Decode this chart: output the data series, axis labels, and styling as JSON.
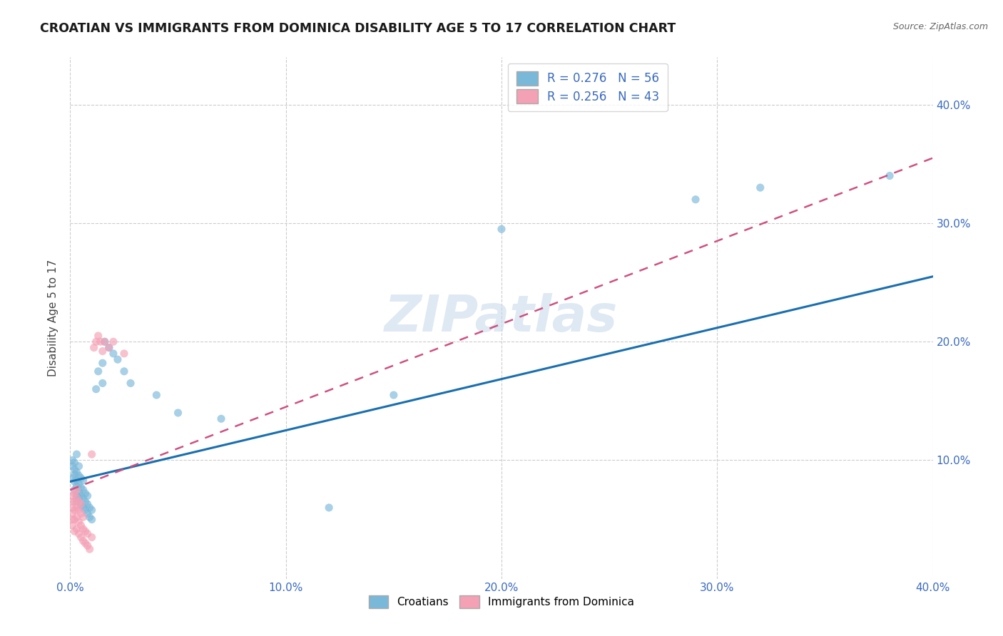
{
  "title": "CROATIAN VS IMMIGRANTS FROM DOMINICA DISABILITY AGE 5 TO 17 CORRELATION CHART",
  "source": "Source: ZipAtlas.com",
  "ylabel": "Disability Age 5 to 17",
  "xlim": [
    0.0,
    0.4
  ],
  "ylim": [
    0.0,
    0.44
  ],
  "x_ticks": [
    0.0,
    0.1,
    0.2,
    0.3,
    0.4
  ],
  "x_tick_labels": [
    "0.0%",
    "10.0%",
    "20.0%",
    "30.0%",
    "40.0%"
  ],
  "y_ticks": [
    0.1,
    0.2,
    0.3,
    0.4
  ],
  "y_tick_labels": [
    "10.0%",
    "20.0%",
    "30.0%",
    "40.0%"
  ],
  "croatian_color": "#7ab8d9",
  "dominica_color": "#f4a0b5",
  "croatian_line_color": "#1a6faf",
  "dominica_line_color": "#d05080",
  "croatian_R": 0.276,
  "croatian_N": 56,
  "dominica_R": 0.256,
  "dominica_N": 43,
  "legend_label_croatian": "Croatians",
  "legend_label_dominica": "Immigrants from Dominica",
  "watermark": "ZIPatlas",
  "cro_line_x0": 0.0,
  "cro_line_y0": 0.082,
  "cro_line_x1": 0.4,
  "cro_line_y1": 0.255,
  "dom_line_x0": 0.0,
  "dom_line_y0": 0.075,
  "dom_line_x1": 0.4,
  "dom_line_y1": 0.355,
  "cro_x": [
    0.001,
    0.001,
    0.001,
    0.002,
    0.002,
    0.002,
    0.002,
    0.002,
    0.003,
    0.003,
    0.003,
    0.003,
    0.003,
    0.003,
    0.004,
    0.004,
    0.004,
    0.004,
    0.004,
    0.005,
    0.005,
    0.005,
    0.005,
    0.006,
    0.006,
    0.006,
    0.006,
    0.007,
    0.007,
    0.007,
    0.008,
    0.008,
    0.008,
    0.009,
    0.009,
    0.01,
    0.01,
    0.012,
    0.013,
    0.015,
    0.015,
    0.016,
    0.018,
    0.02,
    0.022,
    0.025,
    0.028,
    0.04,
    0.05,
    0.07,
    0.12,
    0.15,
    0.2,
    0.29,
    0.32,
    0.38
  ],
  "cro_y": [
    0.085,
    0.095,
    0.1,
    0.075,
    0.082,
    0.088,
    0.092,
    0.098,
    0.065,
    0.07,
    0.078,
    0.083,
    0.09,
    0.105,
    0.068,
    0.073,
    0.08,
    0.087,
    0.095,
    0.062,
    0.07,
    0.077,
    0.085,
    0.06,
    0.068,
    0.075,
    0.083,
    0.058,
    0.065,
    0.072,
    0.055,
    0.063,
    0.07,
    0.052,
    0.06,
    0.05,
    0.058,
    0.16,
    0.175,
    0.165,
    0.182,
    0.2,
    0.195,
    0.19,
    0.185,
    0.175,
    0.165,
    0.155,
    0.14,
    0.135,
    0.06,
    0.155,
    0.295,
    0.32,
    0.33,
    0.34
  ],
  "dom_x": [
    0.001,
    0.001,
    0.001,
    0.001,
    0.001,
    0.001,
    0.002,
    0.002,
    0.002,
    0.002,
    0.002,
    0.003,
    0.003,
    0.003,
    0.003,
    0.003,
    0.004,
    0.004,
    0.004,
    0.004,
    0.005,
    0.005,
    0.005,
    0.005,
    0.006,
    0.006,
    0.006,
    0.007,
    0.007,
    0.008,
    0.008,
    0.009,
    0.01,
    0.01,
    0.011,
    0.012,
    0.013,
    0.014,
    0.015,
    0.016,
    0.018,
    0.02,
    0.025
  ],
  "dom_y": [
    0.045,
    0.05,
    0.055,
    0.06,
    0.065,
    0.07,
    0.04,
    0.05,
    0.058,
    0.065,
    0.072,
    0.042,
    0.052,
    0.06,
    0.068,
    0.075,
    0.038,
    0.048,
    0.058,
    0.065,
    0.035,
    0.045,
    0.055,
    0.063,
    0.032,
    0.042,
    0.052,
    0.03,
    0.04,
    0.028,
    0.038,
    0.025,
    0.035,
    0.105,
    0.195,
    0.2,
    0.205,
    0.2,
    0.192,
    0.2,
    0.195,
    0.2,
    0.19
  ]
}
